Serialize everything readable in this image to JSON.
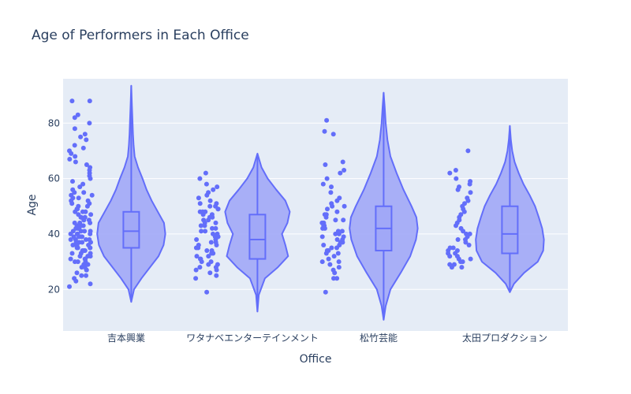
{
  "chart_data": {
    "type": "violin",
    "title": "Age of Performers in Each Office",
    "xlabel": "Office",
    "ylabel": "Age",
    "categories": [
      "吉本興業",
      "ワタナベエンターテインメント",
      "松竹芸能",
      "太田プロダクション"
    ],
    "ylim": [
      5,
      96
    ],
    "yticks": [
      20,
      40,
      60,
      80
    ],
    "grid": true,
    "show_points": true,
    "series": [
      {
        "category": "吉本興業",
        "min": 21,
        "q1": 35,
        "median": 41,
        "q3": 48,
        "max": 88,
        "kde_range": [
          15.5,
          93.5
        ],
        "kde_profile": [
          [
            15.5,
            0.0
          ],
          [
            20,
            0.08
          ],
          [
            24,
            0.3
          ],
          [
            28,
            0.55
          ],
          [
            32,
            0.8
          ],
          [
            36,
            0.95
          ],
          [
            40,
            1.0
          ],
          [
            44,
            0.96
          ],
          [
            48,
            0.78
          ],
          [
            52,
            0.6
          ],
          [
            56,
            0.45
          ],
          [
            60,
            0.33
          ],
          [
            64,
            0.2
          ],
          [
            68,
            0.1
          ],
          [
            72,
            0.07
          ],
          [
            76,
            0.05
          ],
          [
            80,
            0.04
          ],
          [
            86,
            0.02
          ],
          [
            93.5,
            0.0
          ]
        ],
        "points": [
          21,
          22,
          23,
          24,
          25,
          25,
          26,
          27,
          27,
          28,
          28,
          29,
          29,
          30,
          30,
          30,
          31,
          31,
          31,
          32,
          32,
          32,
          33,
          33,
          33,
          34,
          34,
          34,
          35,
          35,
          35,
          35,
          36,
          36,
          36,
          36,
          37,
          37,
          37,
          37,
          38,
          38,
          38,
          38,
          39,
          39,
          39,
          39,
          40,
          40,
          40,
          40,
          41,
          41,
          41,
          41,
          42,
          42,
          42,
          42,
          43,
          43,
          43,
          44,
          44,
          44,
          45,
          45,
          45,
          46,
          46,
          46,
          47,
          47,
          48,
          48,
          48,
          49,
          49,
          50,
          50,
          51,
          51,
          52,
          52,
          53,
          53,
          54,
          54,
          55,
          55,
          56,
          57,
          58,
          59,
          60,
          61,
          62,
          63,
          64,
          65,
          66,
          67,
          68,
          69,
          70,
          71,
          72,
          74,
          75,
          76,
          78,
          80,
          82,
          83,
          88,
          88
        ]
      },
      {
        "category": "ワタナベエンターテインメント",
        "min": 19,
        "q1": 31,
        "median": 38,
        "q3": 47,
        "max": 62,
        "kde_range": [
          12,
          69
        ],
        "kde_profile": [
          [
            12,
            0.0
          ],
          [
            18,
            0.04
          ],
          [
            24,
            0.22
          ],
          [
            28,
            0.6
          ],
          [
            32,
            0.9
          ],
          [
            36,
            0.82
          ],
          [
            40,
            0.72
          ],
          [
            44,
            0.88
          ],
          [
            48,
            0.95
          ],
          [
            52,
            0.82
          ],
          [
            56,
            0.55
          ],
          [
            60,
            0.3
          ],
          [
            64,
            0.12
          ],
          [
            69,
            0.0
          ]
        ],
        "points": [
          19,
          24,
          25,
          26,
          27,
          27,
          28,
          28,
          29,
          29,
          30,
          30,
          31,
          31,
          32,
          32,
          33,
          33,
          34,
          34,
          35,
          35,
          36,
          36,
          37,
          37,
          38,
          38,
          39,
          39,
          40,
          40,
          41,
          41,
          42,
          42,
          43,
          43,
          44,
          44,
          45,
          45,
          46,
          46,
          47,
          47,
          48,
          48,
          48,
          49,
          49,
          50,
          50,
          51,
          51,
          52,
          53,
          54,
          55,
          56,
          57,
          58,
          60,
          62
        ]
      },
      {
        "category": "松竹芸能",
        "min": 19,
        "q1": 34,
        "median": 42,
        "q3": 50,
        "max": 81,
        "kde_range": [
          9,
          91
        ],
        "kde_profile": [
          [
            9,
            0.0
          ],
          [
            14,
            0.06
          ],
          [
            20,
            0.2
          ],
          [
            26,
            0.5
          ],
          [
            32,
            0.78
          ],
          [
            38,
            0.95
          ],
          [
            42,
            1.0
          ],
          [
            46,
            0.96
          ],
          [
            50,
            0.82
          ],
          [
            56,
            0.58
          ],
          [
            62,
            0.38
          ],
          [
            68,
            0.2
          ],
          [
            74,
            0.11
          ],
          [
            80,
            0.06
          ],
          [
            86,
            0.03
          ],
          [
            91,
            0.0
          ]
        ],
        "points": [
          19,
          24,
          24,
          26,
          27,
          28,
          29,
          30,
          30,
          31,
          32,
          33,
          33,
          34,
          34,
          35,
          35,
          36,
          36,
          37,
          37,
          38,
          38,
          39,
          39,
          40,
          40,
          41,
          41,
          42,
          42,
          43,
          43,
          44,
          44,
          45,
          45,
          46,
          47,
          47,
          48,
          49,
          50,
          50,
          51,
          52,
          53,
          55,
          57,
          58,
          60,
          62,
          63,
          65,
          66,
          76,
          77,
          81
        ]
      },
      {
        "category": "太田プロダクション",
        "min": 28,
        "q1": 33,
        "median": 40,
        "q3": 50,
        "max": 70,
        "kde_range": [
          19,
          79
        ],
        "kde_profile": [
          [
            19,
            0.0
          ],
          [
            22,
            0.12
          ],
          [
            26,
            0.42
          ],
          [
            30,
            0.82
          ],
          [
            34,
            0.98
          ],
          [
            38,
            1.0
          ],
          [
            42,
            0.95
          ],
          [
            46,
            0.85
          ],
          [
            50,
            0.74
          ],
          [
            54,
            0.58
          ],
          [
            58,
            0.4
          ],
          [
            62,
            0.26
          ],
          [
            66,
            0.14
          ],
          [
            70,
            0.07
          ],
          [
            74,
            0.03
          ],
          [
            79,
            0.0
          ]
        ],
        "points": [
          28,
          28,
          29,
          29,
          30,
          30,
          31,
          31,
          32,
          32,
          33,
          33,
          34,
          34,
          35,
          35,
          36,
          37,
          38,
          38,
          39,
          40,
          40,
          41,
          42,
          43,
          44,
          45,
          46,
          47,
          48,
          49,
          50,
          51,
          52,
          53,
          55,
          56,
          57,
          58,
          59,
          60,
          62,
          63,
          70
        ]
      }
    ],
    "colors": {
      "fill": "#a1a8f7",
      "line": "#636efa",
      "point": "#636efa",
      "plot_bg": "#e5ecf6",
      "grid": "#ffffff",
      "text": "#2a3f5f"
    }
  }
}
